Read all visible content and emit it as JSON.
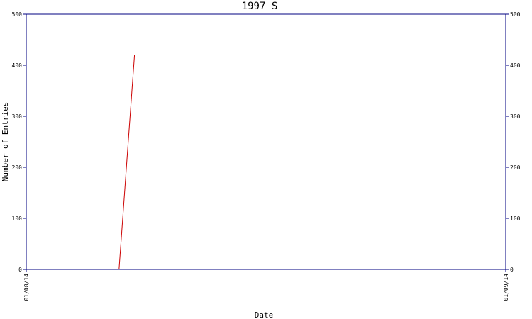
{
  "chart_data": {
    "type": "line",
    "title": "1997 S",
    "xlabel": "Date",
    "ylabel": "Number of Entries",
    "x_tick_labels": [
      "01/08/14",
      "01/09/14"
    ],
    "y_ticks": [
      0,
      100,
      200,
      300,
      400,
      500
    ],
    "ylim": [
      0,
      500
    ],
    "grid": false,
    "legend": "none",
    "series": [
      {
        "color": "#cc0000",
        "points": [
          {
            "x": "01/08/20",
            "y": 0
          },
          {
            "x": "01/08/21",
            "y": 420
          }
        ]
      }
    ],
    "colors": {
      "axis": "#000080",
      "line": "#cc0000"
    }
  }
}
